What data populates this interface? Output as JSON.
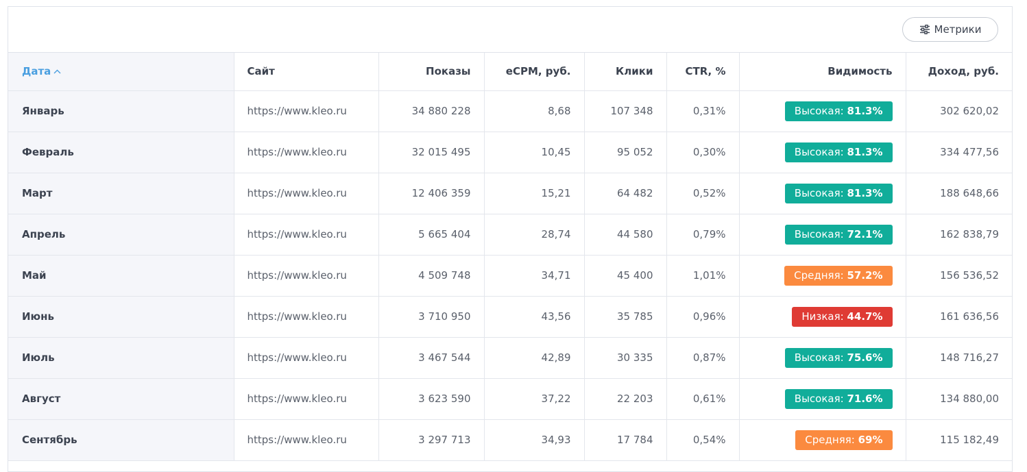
{
  "toolbar": {
    "metrics_label": "Метрики",
    "metrics_icon": "sliders-icon"
  },
  "columns": {
    "date": "Дата",
    "site": "Сайт",
    "impressions": "Показы",
    "ecpm": "eCPM, руб.",
    "clicks": "Клики",
    "ctr": "CTR, %",
    "visibility": "Видимость",
    "revenue": "Доход, руб."
  },
  "sort": {
    "column": "date",
    "direction": "asc",
    "icon": "chevron-up-icon"
  },
  "colors": {
    "high": "#11ad9a",
    "medium": "#fb8a3f",
    "low": "#df3b34",
    "accent": "#4a9fe0"
  },
  "rows": [
    {
      "date": "Январь",
      "site": "https://www.kleo.ru",
      "impressions": "34 880 228",
      "ecpm": "8,68",
      "clicks": "107 348",
      "ctr": "0,31%",
      "vis_label": "Высокая:",
      "vis_value": "81.3%",
      "vis_level": "high",
      "revenue": "302 620,02"
    },
    {
      "date": "Февраль",
      "site": "https://www.kleo.ru",
      "impressions": "32 015 495",
      "ecpm": "10,45",
      "clicks": "95 052",
      "ctr": "0,30%",
      "vis_label": "Высокая:",
      "vis_value": "81.3%",
      "vis_level": "high",
      "revenue": "334 477,56"
    },
    {
      "date": "Март",
      "site": "https://www.kleo.ru",
      "impressions": "12 406 359",
      "ecpm": "15,21",
      "clicks": "64 482",
      "ctr": "0,52%",
      "vis_label": "Высокая:",
      "vis_value": "81.3%",
      "vis_level": "high",
      "revenue": "188 648,66"
    },
    {
      "date": "Апрель",
      "site": "https://www.kleo.ru",
      "impressions": "5 665 404",
      "ecpm": "28,74",
      "clicks": "44 580",
      "ctr": "0,79%",
      "vis_label": "Высокая:",
      "vis_value": "72.1%",
      "vis_level": "high",
      "revenue": "162 838,79"
    },
    {
      "date": "Май",
      "site": "https://www.kleo.ru",
      "impressions": "4 509 748",
      "ecpm": "34,71",
      "clicks": "45 400",
      "ctr": "1,01%",
      "vis_label": "Средняя:",
      "vis_value": "57.2%",
      "vis_level": "medium",
      "revenue": "156 536,52"
    },
    {
      "date": "Июнь",
      "site": "https://www.kleo.ru",
      "impressions": "3 710 950",
      "ecpm": "43,56",
      "clicks": "35 785",
      "ctr": "0,96%",
      "vis_label": "Низкая:",
      "vis_value": "44.7%",
      "vis_level": "low",
      "revenue": "161 636,56"
    },
    {
      "date": "Июль",
      "site": "https://www.kleo.ru",
      "impressions": "3 467 544",
      "ecpm": "42,89",
      "clicks": "30 335",
      "ctr": "0,87%",
      "vis_label": "Высокая:",
      "vis_value": "75.6%",
      "vis_level": "high",
      "revenue": "148 716,27"
    },
    {
      "date": "Август",
      "site": "https://www.kleo.ru",
      "impressions": "3 623 590",
      "ecpm": "37,22",
      "clicks": "22 203",
      "ctr": "0,61%",
      "vis_label": "Высокая:",
      "vis_value": "71.6%",
      "vis_level": "high",
      "revenue": "134 880,00"
    },
    {
      "date": "Сентябрь",
      "site": "https://www.kleo.ru",
      "impressions": "3 297 713",
      "ecpm": "34,93",
      "clicks": "17 784",
      "ctr": "0,54%",
      "vis_label": "Средняя:",
      "vis_value": "69%",
      "vis_level": "medium",
      "revenue": "115 182,49"
    }
  ]
}
